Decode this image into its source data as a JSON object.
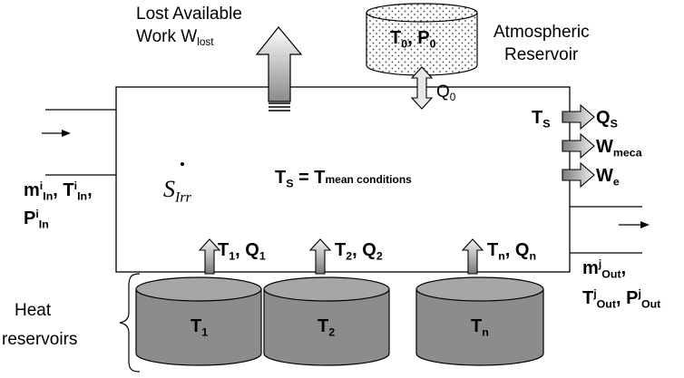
{
  "labels": {
    "lost_work_line1": "Lost Available",
    "lost_work_line2": "Work W",
    "lost_work_sub": "lost",
    "atmospheric_line1": "Atmospheric",
    "atmospheric_line2": "Reservoir",
    "atm_T": "T",
    "atm_T_sub": "0",
    "atm_P": "P",
    "atm_P_sub": "0",
    "atm_sep": ", ",
    "q0": "Q",
    "q0_sub": "0",
    "ts": "T",
    "ts_sub": "S",
    "qs": "Q",
    "qs_sub": "S",
    "wmeca": "W",
    "wmeca_sub": "meca",
    "we": "W",
    "we_sub": "e",
    "inlet_m": "m",
    "inlet_m_sup": "i",
    "inlet_m_sub": "In",
    "inlet_T": "T",
    "inlet_T_sup": "i",
    "inlet_T_sub": "In",
    "inlet_P": "P",
    "inlet_P_sup": "i",
    "inlet_P_sub": "In",
    "comma": ",",
    "sirr": "S",
    "sirr_sub": "Irr",
    "mean_T": "T",
    "mean_T_sub": "S",
    "mean_eq": " = T",
    "mean_rest": "mean conditions",
    "outlet_m": "m",
    "outlet_m_sup": "j",
    "outlet_m_sub": "Out",
    "outlet_T": "T",
    "outlet_T_sup": "j",
    "outlet_T_sub": "Out",
    "outlet_P": "P",
    "outlet_P_sup": "j",
    "outlet_P_sub": "Out",
    "heat_line1": "Heat",
    "heat_line2": "reservoirs",
    "r1_T": "T",
    "r1_T_sub": "1",
    "r1_Q": "Q",
    "r1_Q_sub": "1",
    "r2_T": "T",
    "r2_T_sub": "2",
    "r2_Q": "Q",
    "r2_Q_sub": "2",
    "rn_T": "T",
    "rn_T_sub": "n",
    "rn_Q": "Q",
    "rn_Q_sub": "n",
    "tank1_T": "T",
    "tank1_sub": "1",
    "tank2_T": "T",
    "tank2_sub": "2",
    "tankn_T": "T",
    "tankn_sub": "n"
  },
  "colors": {
    "tank_fill": "#8c8c8c",
    "tank_top": "#a6a6a6",
    "arrow_dark": "#8a8a8a",
    "arrow_light": "#f0f0f0",
    "line": "#000000"
  }
}
